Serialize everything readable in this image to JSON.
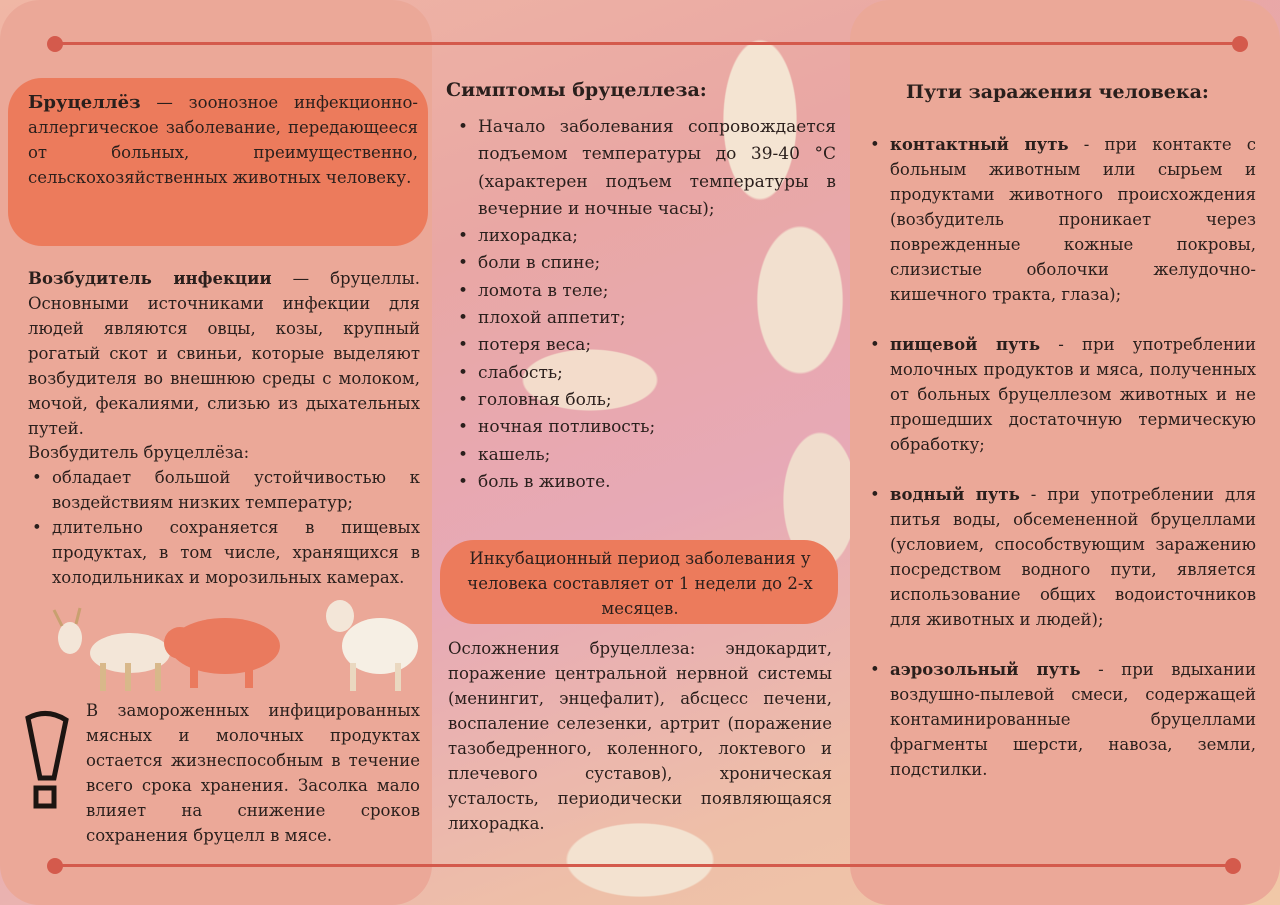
{
  "left": {
    "definition_term": "Бруцеллёз",
    "definition_text": " — зоонозное инфекционно-аллергическое заболевание, передающееся от больных, преимущественно, сельскохозяйственных животных человеку.",
    "agent_term": "Возбудитель инфекции",
    "agent_text": " — бруцеллы. Основными источниками инфекции для людей являются овцы, козы, крупный рогатый скот и свиньи, которые выделяют возбудителя во внешнюю среды с молоком, мочой, фекалиями, слизью из дыхательных путей.",
    "agent_props_title": "Возбудитель бруцеллёза:",
    "agent_props": [
      "обладает большой устойчивостью к воздействиям низких температур;",
      "длительно сохраняется в пищевых продуктах, в том числе, хранящихся в холодильниках и морозильных камерах."
    ],
    "warning_text": "В замороженных инфицированных мясных и молочных продуктах остается жизнеспособным в течение всего срока хранения. Засолка мало влияет на снижение сроков сохранения бруцелл в мясе."
  },
  "middle": {
    "symptoms_title": "Симптомы бруцеллеза:",
    "symptoms": [
      "Начало заболевания сопровождается подъемом температуры до 39-40 °С (характерен подъем температуры в вечерние и ночные часы);",
      "лихорадка;",
      "боли в спине;",
      "ломота в теле;",
      "плохой аппетит;",
      "потеря веса;",
      "слабость;",
      "головная боль;",
      "ночная потливость;",
      "кашель;",
      "боль в животе."
    ],
    "incubation": "Инкубационный период заболевания у человека составляет от 1 недели до 2-х месяцев.",
    "complications": "Осложнения бруцеллеза: эндокардит, поражение центральной нервной системы (менингит, энцефалит), абсцесс печени, воспаление селезенки, артрит (поражение тазобедренного, коленного, локтевого и плечевого суставов), хроническая усталость, периодически появляющаяся лихорадка."
  },
  "right": {
    "title": "Пути заражения человека:",
    "routes": [
      {
        "term": "контактный путь",
        "text": " - при контакте с больным животным или сырьем и продуктами животного происхождения (возбудитель проникает через поврежденные кожные покровы, слизистые оболочки желудочно-кишечного тракта, глаза);"
      },
      {
        "term": "пищевой путь",
        "text": " - при употреблении молочных продуктов и мяса, полученных от больных бруцеллезом животных и не прошедших достаточную термическую обработку;"
      },
      {
        "term": "водный путь",
        "text": " - при употреблении для питья воды, обсемененной бруцеллами (условием, способствующим заражению посредством водного пути, является использование общих водоисточников для животных и людей);"
      },
      {
        "term": "аэрозольный путь",
        "text": " - при вдыхании воздушно-пылевой смеси, содержащей контаминированные бруцеллами фрагменты шерсти, навоза, земли, подстилки."
      }
    ]
  },
  "colors": {
    "panel": "#eba898",
    "accent": "#ec7b5c",
    "line": "#d45a4c"
  }
}
